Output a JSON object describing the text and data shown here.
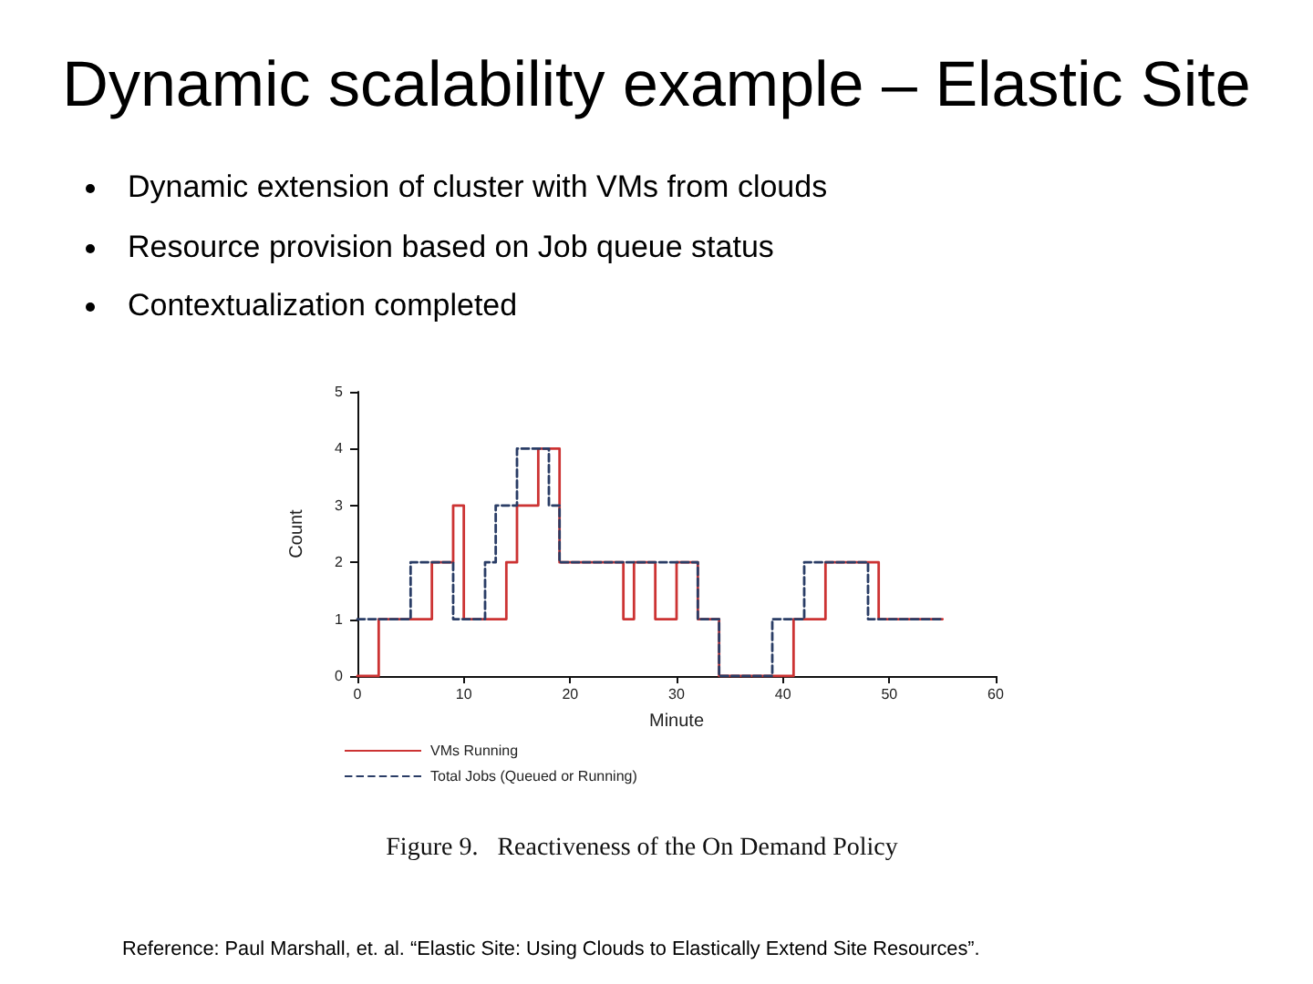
{
  "chart_data": {
    "type": "step",
    "title": "Dynamic scalability example – Elastic Site",
    "annotations": [
      "Dynamic extension of cluster with VMs from clouds",
      "Resource provision based on Job queue status",
      "Contextualization completed",
      "Figure 9.   Reactiveness of the On Demand Policy",
      "Reference: Paul Marshall, et. al. “Elastic Site: Using Clouds to Elastically Extend Site Resources”."
    ],
    "xlabel": "Minute",
    "ylabel": "Count",
    "series": [
      {
        "name": "VMs Running",
        "color": "#cc3333",
        "line_style": "solid",
        "x": [
          0,
          2,
          7,
          9,
          10,
          14,
          15,
          17,
          19,
          25,
          26,
          28,
          30,
          32,
          34,
          41,
          44,
          49,
          55
        ],
        "values": [
          0,
          1,
          2,
          3,
          1,
          2,
          3,
          4,
          2,
          1,
          2,
          1,
          2,
          1,
          0,
          1,
          2,
          1,
          1
        ]
      },
      {
        "name": "Total Jobs (Queued or Running)",
        "color": "#2a3d66",
        "line_style": "dashed",
        "x": [
          0,
          5,
          9,
          12,
          13,
          15,
          18,
          19,
          32,
          34,
          39,
          42,
          48,
          55
        ],
        "values": [
          1,
          2,
          1,
          2,
          3,
          4,
          3,
          2,
          1,
          0,
          1,
          2,
          1,
          1
        ]
      }
    ],
    "xlim": [
      0,
      60
    ],
    "xticks": [
      0,
      10,
      20,
      30,
      40,
      50,
      60
    ],
    "ylim": [
      0,
      5
    ],
    "yticks": [
      0,
      1,
      2,
      3,
      4,
      5
    ],
    "grid": false,
    "legend": "bottom left",
    "marker": "none"
  }
}
